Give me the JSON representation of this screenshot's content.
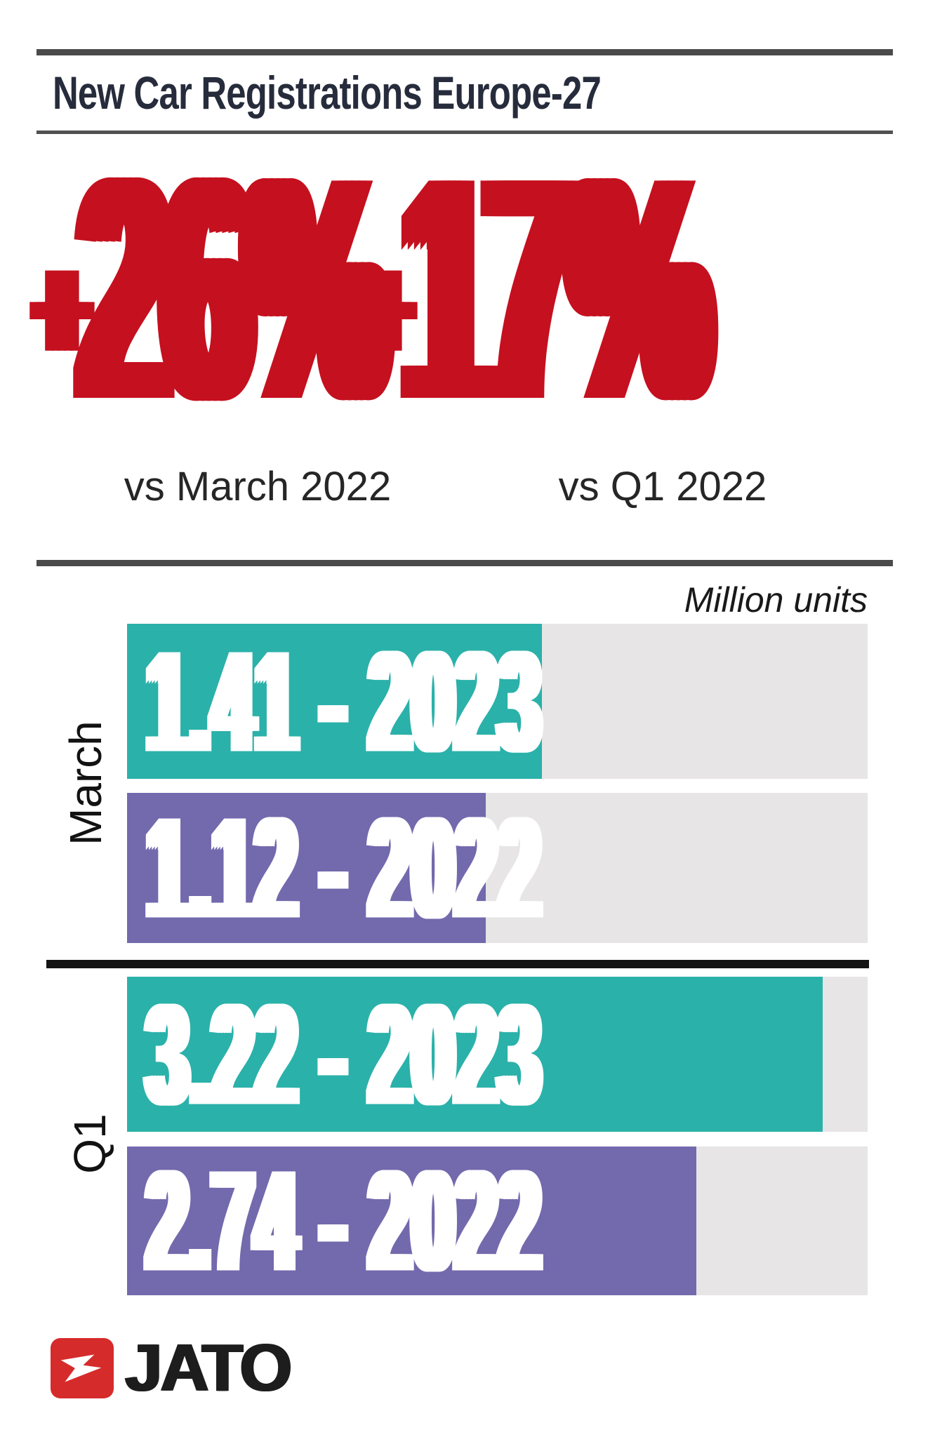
{
  "title": "New Car Registrations Europe-27",
  "highlights": [
    {
      "prefix": "+",
      "number": "26",
      "suffix": "%",
      "label": "vs March 2022"
    },
    {
      "prefix": "+",
      "number": "17",
      "suffix": "%",
      "label": "vs Q1 2022"
    }
  ],
  "chart_data": {
    "type": "bar",
    "orientation": "horizontal",
    "title": "New Car Registrations Europe-27",
    "units_label": "Million units",
    "value_unit": "million units",
    "grid": false,
    "legend_position": "none",
    "groups": [
      {
        "label": "March",
        "bars": [
          {
            "series": "2023",
            "value": 1.41,
            "text": "1.41 - 2023",
            "color": "#2ab1aa",
            "fill_pct": 56.0
          },
          {
            "series": "2022",
            "value": 1.12,
            "text": "1.12 - 2022",
            "color": "#7369ad",
            "fill_pct": 48.4
          }
        ]
      },
      {
        "label": "Q1",
        "bars": [
          {
            "series": "2023",
            "value": 3.22,
            "text": "3.22 - 2023",
            "color": "#2ab1aa",
            "fill_pct": 93.9
          },
          {
            "series": "2022",
            "value": 2.74,
            "text": "2.74 - 2022",
            "color": "#7369ad",
            "fill_pct": 76.9
          }
        ]
      }
    ]
  },
  "logo": {
    "text": "JATO"
  },
  "colors": {
    "accent_red": "#c5101f",
    "teal_2023": "#2ab1aa",
    "purple_2022": "#7369ad",
    "bar_track": "#e7e5e6",
    "title_navy": "#272c3c",
    "rule_gray": "#4a4a4a",
    "separator_black": "#141414",
    "logo_red": "#d62b2b"
  }
}
